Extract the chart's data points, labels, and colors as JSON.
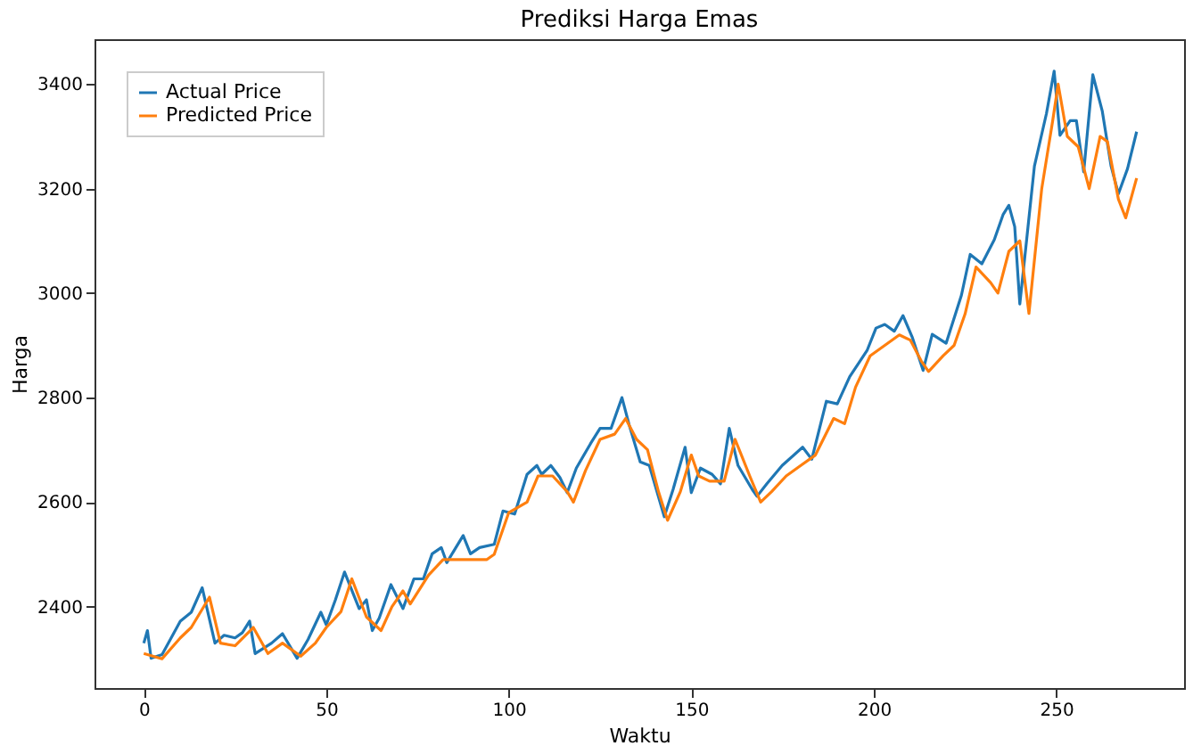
{
  "chart_data": {
    "type": "line",
    "title": "Prediksi Harga Emas",
    "xlabel": "Waktu",
    "ylabel": "Harga",
    "xlim": [
      -13.5,
      285
    ],
    "ylim": [
      2244,
      3486
    ],
    "xticks": [
      0,
      50,
      100,
      150,
      200,
      250
    ],
    "yticks": [
      2400,
      2600,
      2800,
      3000,
      3200,
      3400
    ],
    "grid": false,
    "legend": "top left",
    "marker": "none",
    "line_style": "solid",
    "series": [
      {
        "name": "Actual Price",
        "color": "#1f77b4",
        "x": [
          0,
          1,
          2,
          5,
          10,
          13,
          16,
          19.5,
          22,
          25,
          27,
          29,
          30.5,
          35,
          38,
          42,
          45,
          48.5,
          50,
          52.5,
          55,
          59,
          61,
          62.6,
          64.5,
          67.7,
          71,
          74,
          76.6,
          79,
          81.5,
          83,
          85.5,
          87.5,
          89.5,
          92,
          96,
          98.4,
          101.6,
          105,
          107.7,
          109,
          111.5,
          114,
          116,
          118.5,
          122.4,
          125,
          128,
          131,
          133,
          136,
          138.5,
          142.6,
          145,
          148.3,
          150,
          152.5,
          155.7,
          158,
          160.4,
          162.8,
          166.7,
          168,
          170.7,
          174.9,
          180.5,
          183,
          187,
          190,
          193.4,
          198.2,
          200.6,
          203,
          205.6,
          208,
          210.5,
          213.5,
          216,
          219.8,
          224,
          226.4,
          229.6,
          233,
          235.4,
          237,
          238.6,
          240,
          244,
          247.3,
          249.4,
          251,
          253.8,
          255.5,
          257.5,
          260,
          262.6,
          265,
          267,
          269.5,
          272
        ],
        "values": [
          2330,
          2354,
          2301,
          2308,
          2372,
          2389,
          2436,
          2330,
          2345,
          2340,
          2350,
          2372,
          2310,
          2330,
          2348,
          2301,
          2337,
          2389,
          2365,
          2413,
          2466,
          2396,
          2413,
          2354,
          2378,
          2442,
          2396,
          2453,
          2453,
          2501,
          2513,
          2484,
          2513,
          2536,
          2501,
          2513,
          2519,
          2583,
          2577,
          2653,
          2670,
          2653,
          2670,
          2647,
          2618,
          2665,
          2712,
          2741,
          2741,
          2800,
          2747,
          2677,
          2670,
          2572,
          2624,
          2705,
          2618,
          2665,
          2653,
          2635,
          2741,
          2670,
          2624,
          2611,
          2635,
          2670,
          2705,
          2682,
          2793,
          2788,
          2840,
          2891,
          2933,
          2940,
          2927,
          2957,
          2916,
          2852,
          2921,
          2904,
          2996,
          3074,
          3056,
          3102,
          3150,
          3168,
          3127,
          2979,
          3243,
          3344,
          3425,
          3302,
          3330,
          3330,
          3232,
          3418,
          3348,
          3243,
          3190,
          3238,
          3309
        ]
      },
      {
        "name": "Predicted Price",
        "color": "#ff7f0e",
        "x": [
          0,
          5,
          10,
          13,
          18,
          21,
          25,
          30,
          34,
          38,
          43,
          47,
          50,
          54,
          57,
          61,
          65,
          68,
          71,
          73,
          78,
          82,
          86,
          90,
          94,
          96,
          100,
          105,
          108,
          112,
          116,
          117.7,
          121,
          125,
          129,
          132,
          135,
          138,
          141,
          143.5,
          147,
          150,
          152,
          155,
          159,
          162,
          166,
          169,
          172,
          176,
          180,
          184,
          189,
          192,
          195,
          199,
          203,
          207,
          210,
          213,
          215,
          219,
          222,
          225,
          228,
          232,
          234,
          237,
          240,
          242.5,
          246,
          249,
          250.5,
          253,
          256,
          259,
          262,
          264,
          267,
          269,
          272
        ],
        "values": [
          2310,
          2300,
          2340,
          2360,
          2418,
          2330,
          2325,
          2360,
          2310,
          2330,
          2305,
          2330,
          2360,
          2390,
          2453,
          2380,
          2354,
          2400,
          2430,
          2405,
          2460,
          2490,
          2490,
          2490,
          2490,
          2500,
          2580,
          2600,
          2650,
          2650,
          2620,
          2600,
          2660,
          2720,
          2730,
          2760,
          2720,
          2700,
          2620,
          2565,
          2620,
          2690,
          2650,
          2640,
          2640,
          2720,
          2650,
          2600,
          2620,
          2650,
          2670,
          2690,
          2760,
          2750,
          2820,
          2880,
          2900,
          2920,
          2910,
          2870,
          2850,
          2880,
          2900,
          2960,
          3050,
          3020,
          3000,
          3080,
          3100,
          2961,
          3200,
          3330,
          3400,
          3300,
          3280,
          3200,
          3300,
          3290,
          3180,
          3144,
          3220
        ]
      }
    ]
  }
}
